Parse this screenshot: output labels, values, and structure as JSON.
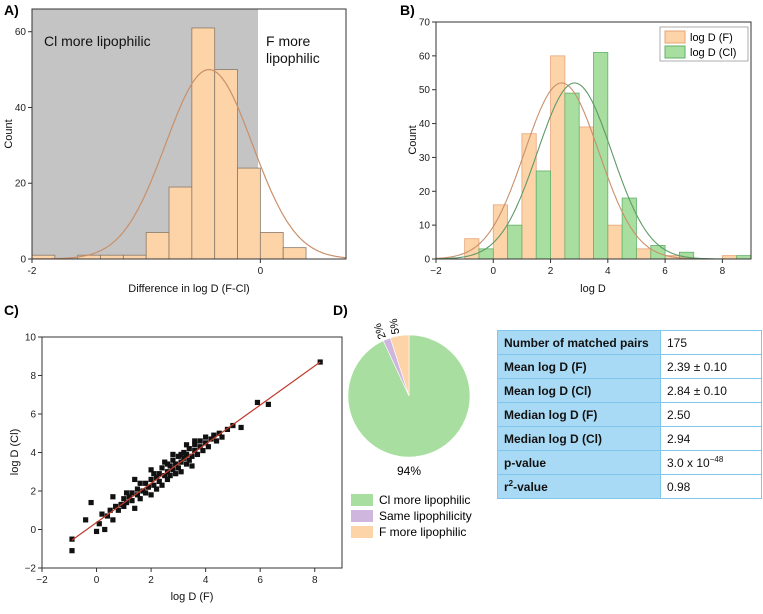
{
  "chart_data": [
    {
      "panel": "A)",
      "type": "histogram",
      "xlabel": "Difference in log D (F-Cl)",
      "ylabel": "Count",
      "xlim": [
        -2,
        0.75
      ],
      "ylim": [
        0,
        66
      ],
      "xticks": [
        "-2",
        "0"
      ],
      "yticks": [
        "0",
        "20",
        "40",
        "60"
      ],
      "bin_width": 0.2,
      "bins": [
        {
          "x0": -2.0,
          "count": 1
        },
        {
          "x0": -1.6,
          "count": 1
        },
        {
          "x0": -1.4,
          "count": 1
        },
        {
          "x0": -1.2,
          "count": 1
        },
        {
          "x0": -1.0,
          "count": 7
        },
        {
          "x0": -0.8,
          "count": 19
        },
        {
          "x0": -0.6,
          "count": 61
        },
        {
          "x0": -0.4,
          "count": 50
        },
        {
          "x0": -0.2,
          "count": 24
        },
        {
          "x0": 0.0,
          "count": 7
        },
        {
          "x0": 0.2,
          "count": 3
        }
      ],
      "fit": {
        "mean": -0.45,
        "sd": 0.38,
        "peak": 50
      },
      "shaded_region": [
        -2.0,
        0.0
      ],
      "annotations": {
        "left": "Cl more lipophilic",
        "right_line1": "F more",
        "right_line2": "lipophilic"
      },
      "bar_color": "#fdd3a8",
      "fit_color": "#c8906a"
    },
    {
      "panel": "B)",
      "type": "histogram",
      "xlabel": "log D",
      "ylabel": "Count",
      "xlim": [
        -2,
        9
      ],
      "ylim": [
        0,
        70
      ],
      "xticks": [
        "−2",
        "0",
        "2",
        "4",
        "6",
        "8"
      ],
      "yticks": [
        "0",
        "10",
        "20",
        "30",
        "40",
        "50",
        "60",
        "70"
      ],
      "bin_width": 1,
      "series": [
        {
          "name": "log D (F)",
          "color": "#fdd3a8",
          "edge": "#e7a57a",
          "centers": [
            -0.75,
            0.25,
            1.25,
            2.25,
            3.25,
            4.25,
            5.25,
            6.25,
            7.25,
            8.25
          ],
          "values": [
            6,
            16,
            37,
            60,
            39,
            10,
            3,
            1,
            0,
            1
          ],
          "fit": {
            "mean": 2.39,
            "sd": 1.3,
            "peak": 52
          }
        },
        {
          "name": "log D (Cl)",
          "color": "#a8dea0",
          "edge": "#63b06a",
          "centers": [
            -0.25,
            0.75,
            1.75,
            2.75,
            3.75,
            4.75,
            5.75,
            6.75,
            7.75,
            8.75
          ],
          "values": [
            3,
            10,
            26,
            49,
            61,
            18,
            4,
            2,
            0,
            1
          ],
          "fit": {
            "mean": 2.84,
            "sd": 1.3,
            "peak": 52
          }
        }
      ]
    },
    {
      "panel": "C)",
      "type": "scatter",
      "xlabel": "log D (F)",
      "ylabel": "log D (Cl)",
      "xlim": [
        -2,
        9
      ],
      "ylim": [
        -2,
        10
      ],
      "xticks": [
        "−2",
        "0",
        "2",
        "4",
        "6",
        "8"
      ],
      "yticks": [
        "−2",
        "0",
        "2",
        "4",
        "6",
        "8",
        "10"
      ],
      "fit_line": {
        "x": [
          -0.9,
          8.2
        ],
        "y": [
          -0.55,
          8.7
        ],
        "color": "#c0392b"
      },
      "points": [
        [
          -0.9,
          -1.1
        ],
        [
          -0.9,
          -0.5
        ],
        [
          -0.4,
          0.5
        ],
        [
          -0.2,
          1.4
        ],
        [
          0.0,
          -0.1
        ],
        [
          0.1,
          0.3
        ],
        [
          0.2,
          0.8
        ],
        [
          0.3,
          0.0
        ],
        [
          0.4,
          0.7
        ],
        [
          0.5,
          1.0
        ],
        [
          0.6,
          0.5
        ],
        [
          0.7,
          1.2
        ],
        [
          0.8,
          1.0
        ],
        [
          0.9,
          1.3
        ],
        [
          1.0,
          1.2
        ],
        [
          1.0,
          1.6
        ],
        [
          1.1,
          1.4
        ],
        [
          1.2,
          1.7
        ],
        [
          1.3,
          1.5
        ],
        [
          1.3,
          1.9
        ],
        [
          1.4,
          1.1
        ],
        [
          1.5,
          1.8
        ],
        [
          1.5,
          2.1
        ],
        [
          1.6,
          1.6
        ],
        [
          1.7,
          2.0
        ],
        [
          1.8,
          1.9
        ],
        [
          1.8,
          2.4
        ],
        [
          1.9,
          2.2
        ],
        [
          2.0,
          1.8
        ],
        [
          2.0,
          2.6
        ],
        [
          2.1,
          2.3
        ],
        [
          2.2,
          2.7
        ],
        [
          2.2,
          2.1
        ],
        [
          2.3,
          2.9
        ],
        [
          2.3,
          2.5
        ],
        [
          2.4,
          3.2
        ],
        [
          2.4,
          2.3
        ],
        [
          2.5,
          2.8
        ],
        [
          2.5,
          3.5
        ],
        [
          2.6,
          2.6
        ],
        [
          2.6,
          3.0
        ],
        [
          2.7,
          3.3
        ],
        [
          2.7,
          2.8
        ],
        [
          2.8,
          3.6
        ],
        [
          2.8,
          3.1
        ],
        [
          2.9,
          2.9
        ],
        [
          2.9,
          3.4
        ],
        [
          3.0,
          3.8
        ],
        [
          3.0,
          3.2
        ],
        [
          3.1,
          3.5
        ],
        [
          3.1,
          3.0
        ],
        [
          3.2,
          3.7
        ],
        [
          3.2,
          4.0
        ],
        [
          3.3,
          3.4
        ],
        [
          3.3,
          3.9
        ],
        [
          3.4,
          3.6
        ],
        [
          3.4,
          4.2
        ],
        [
          3.5,
          3.8
        ],
        [
          3.5,
          3.3
        ],
        [
          3.6,
          4.1
        ],
        [
          3.6,
          4.4
        ],
        [
          3.7,
          3.9
        ],
        [
          3.8,
          4.3
        ],
        [
          3.8,
          4.6
        ],
        [
          3.9,
          4.1
        ],
        [
          4.0,
          4.5
        ],
        [
          4.0,
          4.8
        ],
        [
          4.1,
          4.3
        ],
        [
          4.2,
          4.7
        ],
        [
          4.3,
          4.9
        ],
        [
          4.4,
          4.6
        ],
        [
          4.5,
          5.0
        ],
        [
          4.6,
          4.8
        ],
        [
          4.8,
          5.2
        ],
        [
          5.0,
          5.4
        ],
        [
          5.3,
          5.3
        ],
        [
          5.9,
          6.6
        ],
        [
          6.3,
          6.5
        ],
        [
          8.2,
          8.7
        ],
        [
          1.1,
          1.9
        ],
        [
          1.6,
          2.4
        ],
        [
          2.1,
          2.9
        ],
        [
          2.6,
          3.4
        ],
        [
          3.1,
          3.9
        ],
        [
          3.6,
          4.6
        ],
        [
          0.6,
          1.7
        ],
        [
          1.4,
          2.6
        ],
        [
          2.0,
          3.1
        ],
        [
          2.8,
          3.9
        ],
        [
          3.3,
          4.4
        ]
      ]
    },
    {
      "panel": "D)",
      "type": "pie",
      "slices": [
        {
          "label": "Cl more lipophilic",
          "percent": 94,
          "value": 164,
          "color": "#a8dea0",
          "slice_label": "94%"
        },
        {
          "label": "Same lipophilicity",
          "percent": 2,
          "value": 3,
          "color": "#cfb6de",
          "slice_label": "2%"
        },
        {
          "label": "F more lipophilic",
          "percent": 5,
          "value": 8,
          "color": "#fdd3a8",
          "slice_label": "5%"
        }
      ]
    }
  ],
  "table": {
    "rows": [
      {
        "key": "Number of matched pairs",
        "value": "175"
      },
      {
        "key": "Mean log D (F)",
        "value": "2.39 ± 0.10"
      },
      {
        "key": "Mean log D (Cl)",
        "value": "2.84 ± 0.10"
      },
      {
        "key": "Median log D (F)",
        "value": "2.50"
      },
      {
        "key": "Median log D (Cl)",
        "value": "2.94"
      },
      {
        "key_base": "p",
        "key_rest": "-value",
        "value_base": "3.0 x 10",
        "value_exp": "−48"
      },
      {
        "key_base": "r",
        "key_sup": "2",
        "key_rest": "-value",
        "value": "0.98"
      }
    ]
  }
}
